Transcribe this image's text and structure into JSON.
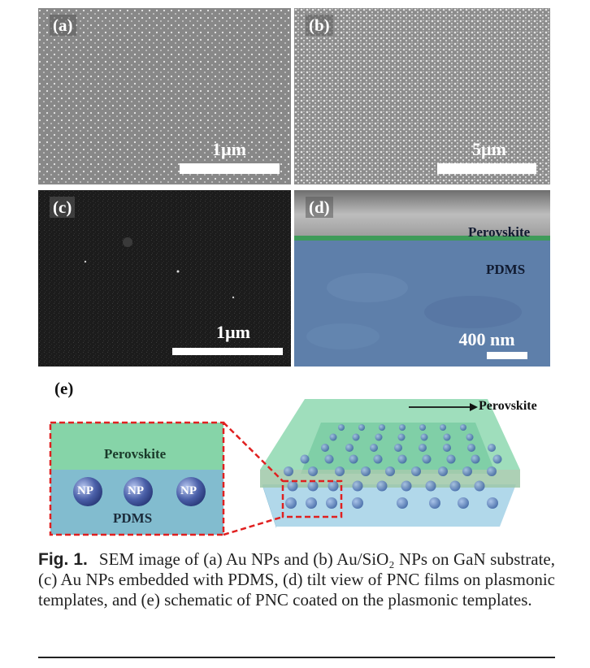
{
  "panels": [
    {
      "id": "a",
      "label": "(a)",
      "scale_text": "1µm"
    },
    {
      "id": "b",
      "label": "(b)",
      "scale_text": "5µm"
    },
    {
      "id": "c",
      "label": "(c)",
      "scale_text": "1µm"
    },
    {
      "id": "d",
      "label": "(d)",
      "scale_text": "400 nm",
      "layer_top": "Perovskite",
      "layer_bottom": "PDMS"
    }
  ],
  "schematic": {
    "label": "(e)",
    "zoom_top": "Perovskite",
    "zoom_bottom": "PDMS",
    "np_label": "NP",
    "arrow_label": "Perovskite"
  },
  "caption": {
    "fig": "Fig. 1.",
    "text": "SEM image of (a) Au NPs and (b) Au/SiO₂ NPs on GaN substrate, (c) Au NPs embedded with PDMS, (d) tilt view of PNC films on plasmonic templates, and (e) schematic of PNC coated on the plasmonic templates."
  },
  "colors": {
    "sem_gray": "#8a8a8a",
    "sem_dark": "#1c1c1c",
    "pdms_blue": "#5e7faa",
    "perovskite_green": "#7ccfa0",
    "dashed_red": "#e02020"
  }
}
